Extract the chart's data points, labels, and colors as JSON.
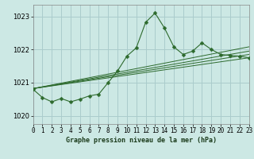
{
  "background_color": "#cce8e4",
  "grid_color": "#aacccc",
  "line_color": "#2d6a2d",
  "marker_color": "#2d6a2d",
  "title": "Graphe pression niveau de la mer (hPa)",
  "xlim": [
    0,
    23
  ],
  "ylim": [
    1019.75,
    1023.35
  ],
  "yticks": [
    1020,
    1021,
    1022,
    1023
  ],
  "xticks": [
    0,
    1,
    2,
    3,
    4,
    5,
    6,
    7,
    8,
    9,
    10,
    11,
    12,
    13,
    14,
    15,
    16,
    17,
    18,
    19,
    20,
    21,
    22,
    23
  ],
  "main_series": {
    "x": [
      0,
      1,
      2,
      3,
      4,
      5,
      6,
      7,
      8,
      9,
      10,
      11,
      12,
      13,
      14,
      15,
      16,
      17,
      18,
      19,
      20,
      21,
      22,
      23
    ],
    "y": [
      1020.8,
      1020.55,
      1020.42,
      1020.52,
      1020.42,
      1020.5,
      1020.6,
      1020.65,
      1021.0,
      1021.35,
      1021.8,
      1022.05,
      1022.82,
      1023.1,
      1022.65,
      1022.08,
      1021.85,
      1021.95,
      1022.2,
      1022.0,
      1021.85,
      1021.82,
      1021.8,
      1021.75
    ]
  },
  "linear_series": [
    {
      "x0": 0,
      "y0": 1020.82,
      "x1": 23,
      "y1": 1021.75
    },
    {
      "x0": 0,
      "y0": 1020.82,
      "x1": 23,
      "y1": 1021.85
    },
    {
      "x0": 0,
      "y0": 1020.82,
      "x1": 23,
      "y1": 1021.95
    },
    {
      "x0": 0,
      "y0": 1020.82,
      "x1": 23,
      "y1": 1022.08
    }
  ]
}
